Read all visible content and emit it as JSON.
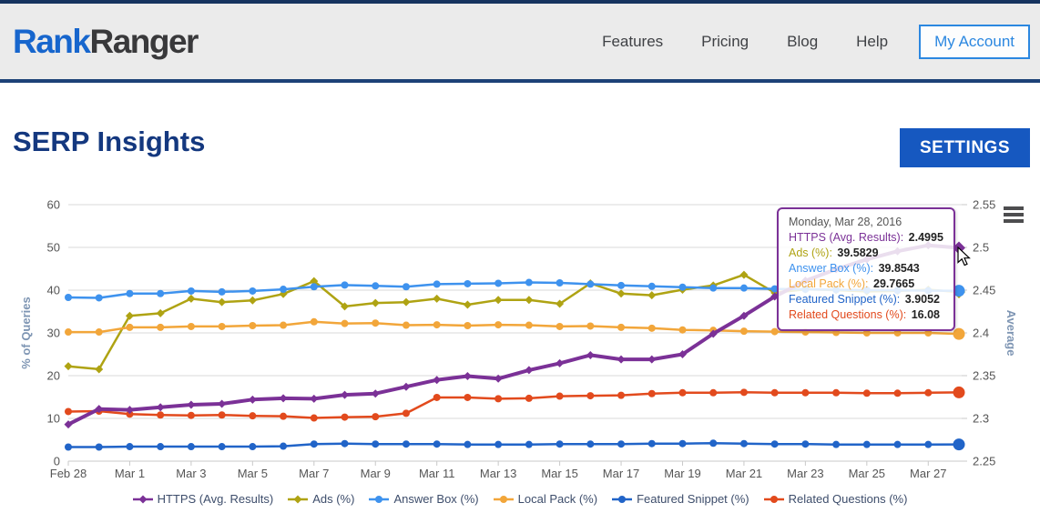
{
  "header": {
    "logo_rank": "Rank",
    "logo_ranger": "Ranger",
    "nav": [
      "Features",
      "Pricing",
      "Blog",
      "Help"
    ],
    "account_label": "My Account"
  },
  "page": {
    "title": "SERP Insights",
    "settings_label": "SETTINGS"
  },
  "icons": {
    "chart_menu": "hamburger-icon",
    "cursor": "mouse-pointer"
  },
  "colors": {
    "accent_blue": "#1658c0",
    "header_border": "#1d4277",
    "title_blue": "#14387f",
    "axis_label": "#7e95b3",
    "tick_label": "#555555",
    "gridline": "#d8d8d8"
  },
  "chart_data": {
    "type": "line",
    "x": [
      "Feb 28",
      "Feb 29",
      "Mar 1",
      "Mar 2",
      "Mar 3",
      "Mar 4",
      "Mar 5",
      "Mar 6",
      "Mar 7",
      "Mar 8",
      "Mar 9",
      "Mar 10",
      "Mar 11",
      "Mar 12",
      "Mar 13",
      "Mar 14",
      "Mar 15",
      "Mar 16",
      "Mar 17",
      "Mar 18",
      "Mar 19",
      "Mar 20",
      "Mar 21",
      "Mar 22",
      "Mar 23",
      "Mar 24",
      "Mar 25",
      "Mar 26",
      "Mar 27",
      "Mar 28"
    ],
    "x_tick_labels": [
      "Feb 28",
      "Mar 1",
      "Mar 3",
      "Mar 5",
      "Mar 7",
      "Mar 9",
      "Mar 11",
      "Mar 13",
      "Mar 15",
      "Mar 17",
      "Mar 19",
      "Mar 21",
      "Mar 23",
      "Mar 25",
      "Mar 27"
    ],
    "grid": true,
    "legend_position": "bottom",
    "left_axis": {
      "label": "% of Queries",
      "min": 0,
      "max": 60,
      "ticks": [
        0,
        10,
        20,
        30,
        40,
        50,
        60
      ]
    },
    "right_axis": {
      "label": "Average",
      "min": 2.25,
      "max": 2.55,
      "ticks": [
        2.25,
        2.3,
        2.35,
        2.4,
        2.45,
        2.5,
        2.55
      ]
    },
    "series": [
      {
        "name": "HTTPS (Avg. Results)",
        "axis": "right",
        "color": "#7b3197",
        "marker": "diamond",
        "line_width": 4,
        "values": [
          2.293,
          2.311,
          2.31,
          2.313,
          2.316,
          2.317,
          2.322,
          2.3235,
          2.323,
          2.3275,
          2.329,
          2.337,
          2.345,
          2.3495,
          2.3465,
          2.3565,
          2.3645,
          2.374,
          2.369,
          2.369,
          2.375,
          2.399,
          2.42,
          2.4425,
          2.461,
          2.4745,
          2.486,
          2.4955,
          2.5025,
          2.4995
        ]
      },
      {
        "name": "Ads (%)",
        "axis": "left",
        "color": "#afa313",
        "marker": "diamond",
        "line_width": 2.5,
        "values": [
          22.2,
          21.5,
          34.0,
          34.6,
          38.0,
          37.2,
          37.6,
          39.1,
          42.1,
          36.2,
          37.0,
          37.2,
          38.0,
          36.6,
          37.7,
          37.7,
          36.8,
          41.6,
          39.2,
          38.8,
          40.1,
          41.1,
          43.6,
          39.4,
          40.2,
          40.0,
          39.7,
          39.8,
          40.1,
          39.5829
        ]
      },
      {
        "name": "Answer Box (%)",
        "axis": "left",
        "color": "#3e92ee",
        "marker": "circle",
        "line_width": 2.5,
        "values": [
          38.3,
          38.2,
          39.2,
          39.2,
          39.8,
          39.6,
          39.8,
          40.2,
          40.8,
          41.2,
          41.0,
          40.8,
          41.4,
          41.5,
          41.6,
          41.8,
          41.7,
          41.4,
          41.1,
          40.9,
          40.7,
          40.5,
          40.5,
          40.3,
          40.2,
          40.1,
          40.0,
          39.95,
          39.9,
          39.8543
        ]
      },
      {
        "name": "Local Pack (%)",
        "axis": "left",
        "color": "#f2a63a",
        "marker": "circle",
        "line_width": 2.5,
        "values": [
          30.2,
          30.2,
          31.3,
          31.3,
          31.5,
          31.5,
          31.7,
          31.8,
          32.6,
          32.2,
          32.3,
          31.8,
          31.9,
          31.7,
          31.9,
          31.8,
          31.5,
          31.6,
          31.3,
          31.1,
          30.7,
          30.6,
          30.4,
          30.3,
          30.2,
          30.1,
          30.0,
          30.0,
          30.0,
          29.7665
        ]
      },
      {
        "name": "Featured Snippet (%)",
        "axis": "left",
        "color": "#2164c8",
        "marker": "circle",
        "line_width": 2.5,
        "values": [
          3.3,
          3.3,
          3.4,
          3.4,
          3.4,
          3.4,
          3.4,
          3.5,
          4.0,
          4.1,
          4.0,
          4.0,
          4.0,
          3.9,
          3.9,
          3.9,
          4.0,
          4.0,
          4.0,
          4.1,
          4.1,
          4.2,
          4.1,
          4.0,
          4.0,
          3.9,
          3.9,
          3.9,
          3.9,
          3.9052
        ]
      },
      {
        "name": "Related Questions (%)",
        "axis": "left",
        "color": "#e24a1d",
        "marker": "circle",
        "line_width": 2.5,
        "values": [
          11.6,
          11.7,
          11.0,
          10.8,
          10.7,
          10.8,
          10.6,
          10.5,
          10.1,
          10.3,
          10.4,
          11.2,
          14.9,
          14.9,
          14.6,
          14.7,
          15.2,
          15.3,
          15.4,
          15.8,
          16.0,
          16.0,
          16.1,
          16.0,
          16.0,
          16.0,
          15.9,
          15.9,
          16.0,
          16.08
        ]
      }
    ],
    "tooltip": {
      "date": "Monday, Mar 28, 2016",
      "rows": [
        {
          "label": "HTTPS (Avg. Results)",
          "value": "2.4995",
          "color": "#7b3197"
        },
        {
          "label": "Ads (%)",
          "value": "39.5829",
          "color": "#afa313"
        },
        {
          "label": "Answer Box (%)",
          "value": "39.8543",
          "color": "#3e92ee"
        },
        {
          "label": "Local Pack (%)",
          "value": "29.7665",
          "color": "#f2a63a"
        },
        {
          "label": "Featured Snippet (%)",
          "value": "3.9052",
          "color": "#2164c8"
        },
        {
          "label": "Related Questions (%)",
          "value": "16.08",
          "color": "#e24a1d"
        }
      ]
    }
  }
}
